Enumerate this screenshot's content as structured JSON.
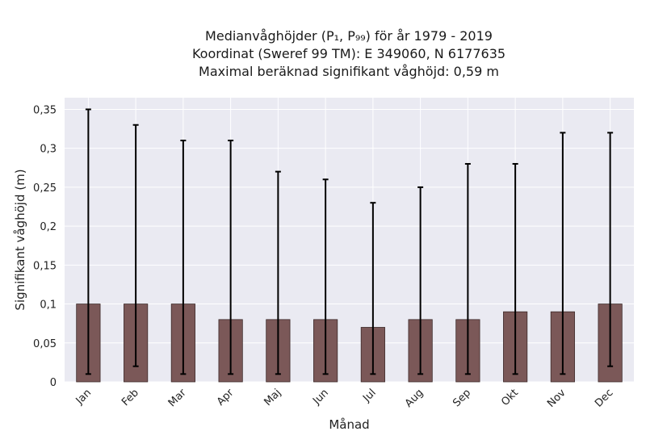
{
  "chart_data": {
    "type": "bar",
    "title_lines": [
      "Medianvåghöjder (P₁, P₉₉) för år 1979 - 2019",
      "Koordinat (Sweref 99 TM): E 349060, N 6177635",
      "Maximal beräknad signifikant våghöjd: 0,59 m"
    ],
    "xlabel": "Månad",
    "ylabel": "Signifikant våghöjd (m)",
    "categories": [
      "Jan",
      "Feb",
      "Mar",
      "Apr",
      "Maj",
      "Jun",
      "Jul",
      "Aug",
      "Sep",
      "Okt",
      "Nov",
      "Dec"
    ],
    "values": [
      0.1,
      0.1,
      0.1,
      0.08,
      0.08,
      0.08,
      0.07,
      0.08,
      0.08,
      0.09,
      0.09,
      0.1
    ],
    "err_low": [
      0.01,
      0.02,
      0.01,
      0.01,
      0.01,
      0.01,
      0.01,
      0.01,
      0.01,
      0.01,
      0.01,
      0.02
    ],
    "err_high": [
      0.35,
      0.33,
      0.31,
      0.31,
      0.27,
      0.26,
      0.23,
      0.25,
      0.28,
      0.28,
      0.32,
      0.32
    ],
    "ylim": [
      0,
      0.365
    ],
    "yticks": [
      0,
      0.05,
      0.1,
      0.15,
      0.2,
      0.25,
      0.3,
      0.35
    ],
    "ytick_labels": [
      "0",
      "0,05",
      "0,1",
      "0,15",
      "0,2",
      "0,25",
      "0,3",
      "0,35"
    ],
    "grid": true,
    "colors": {
      "bar": "#7b5858",
      "bar_edge": "#3d2a2a",
      "plot_bg": "#eaeaf2",
      "grid": "#ffffff",
      "errorbar": "#000000"
    }
  }
}
